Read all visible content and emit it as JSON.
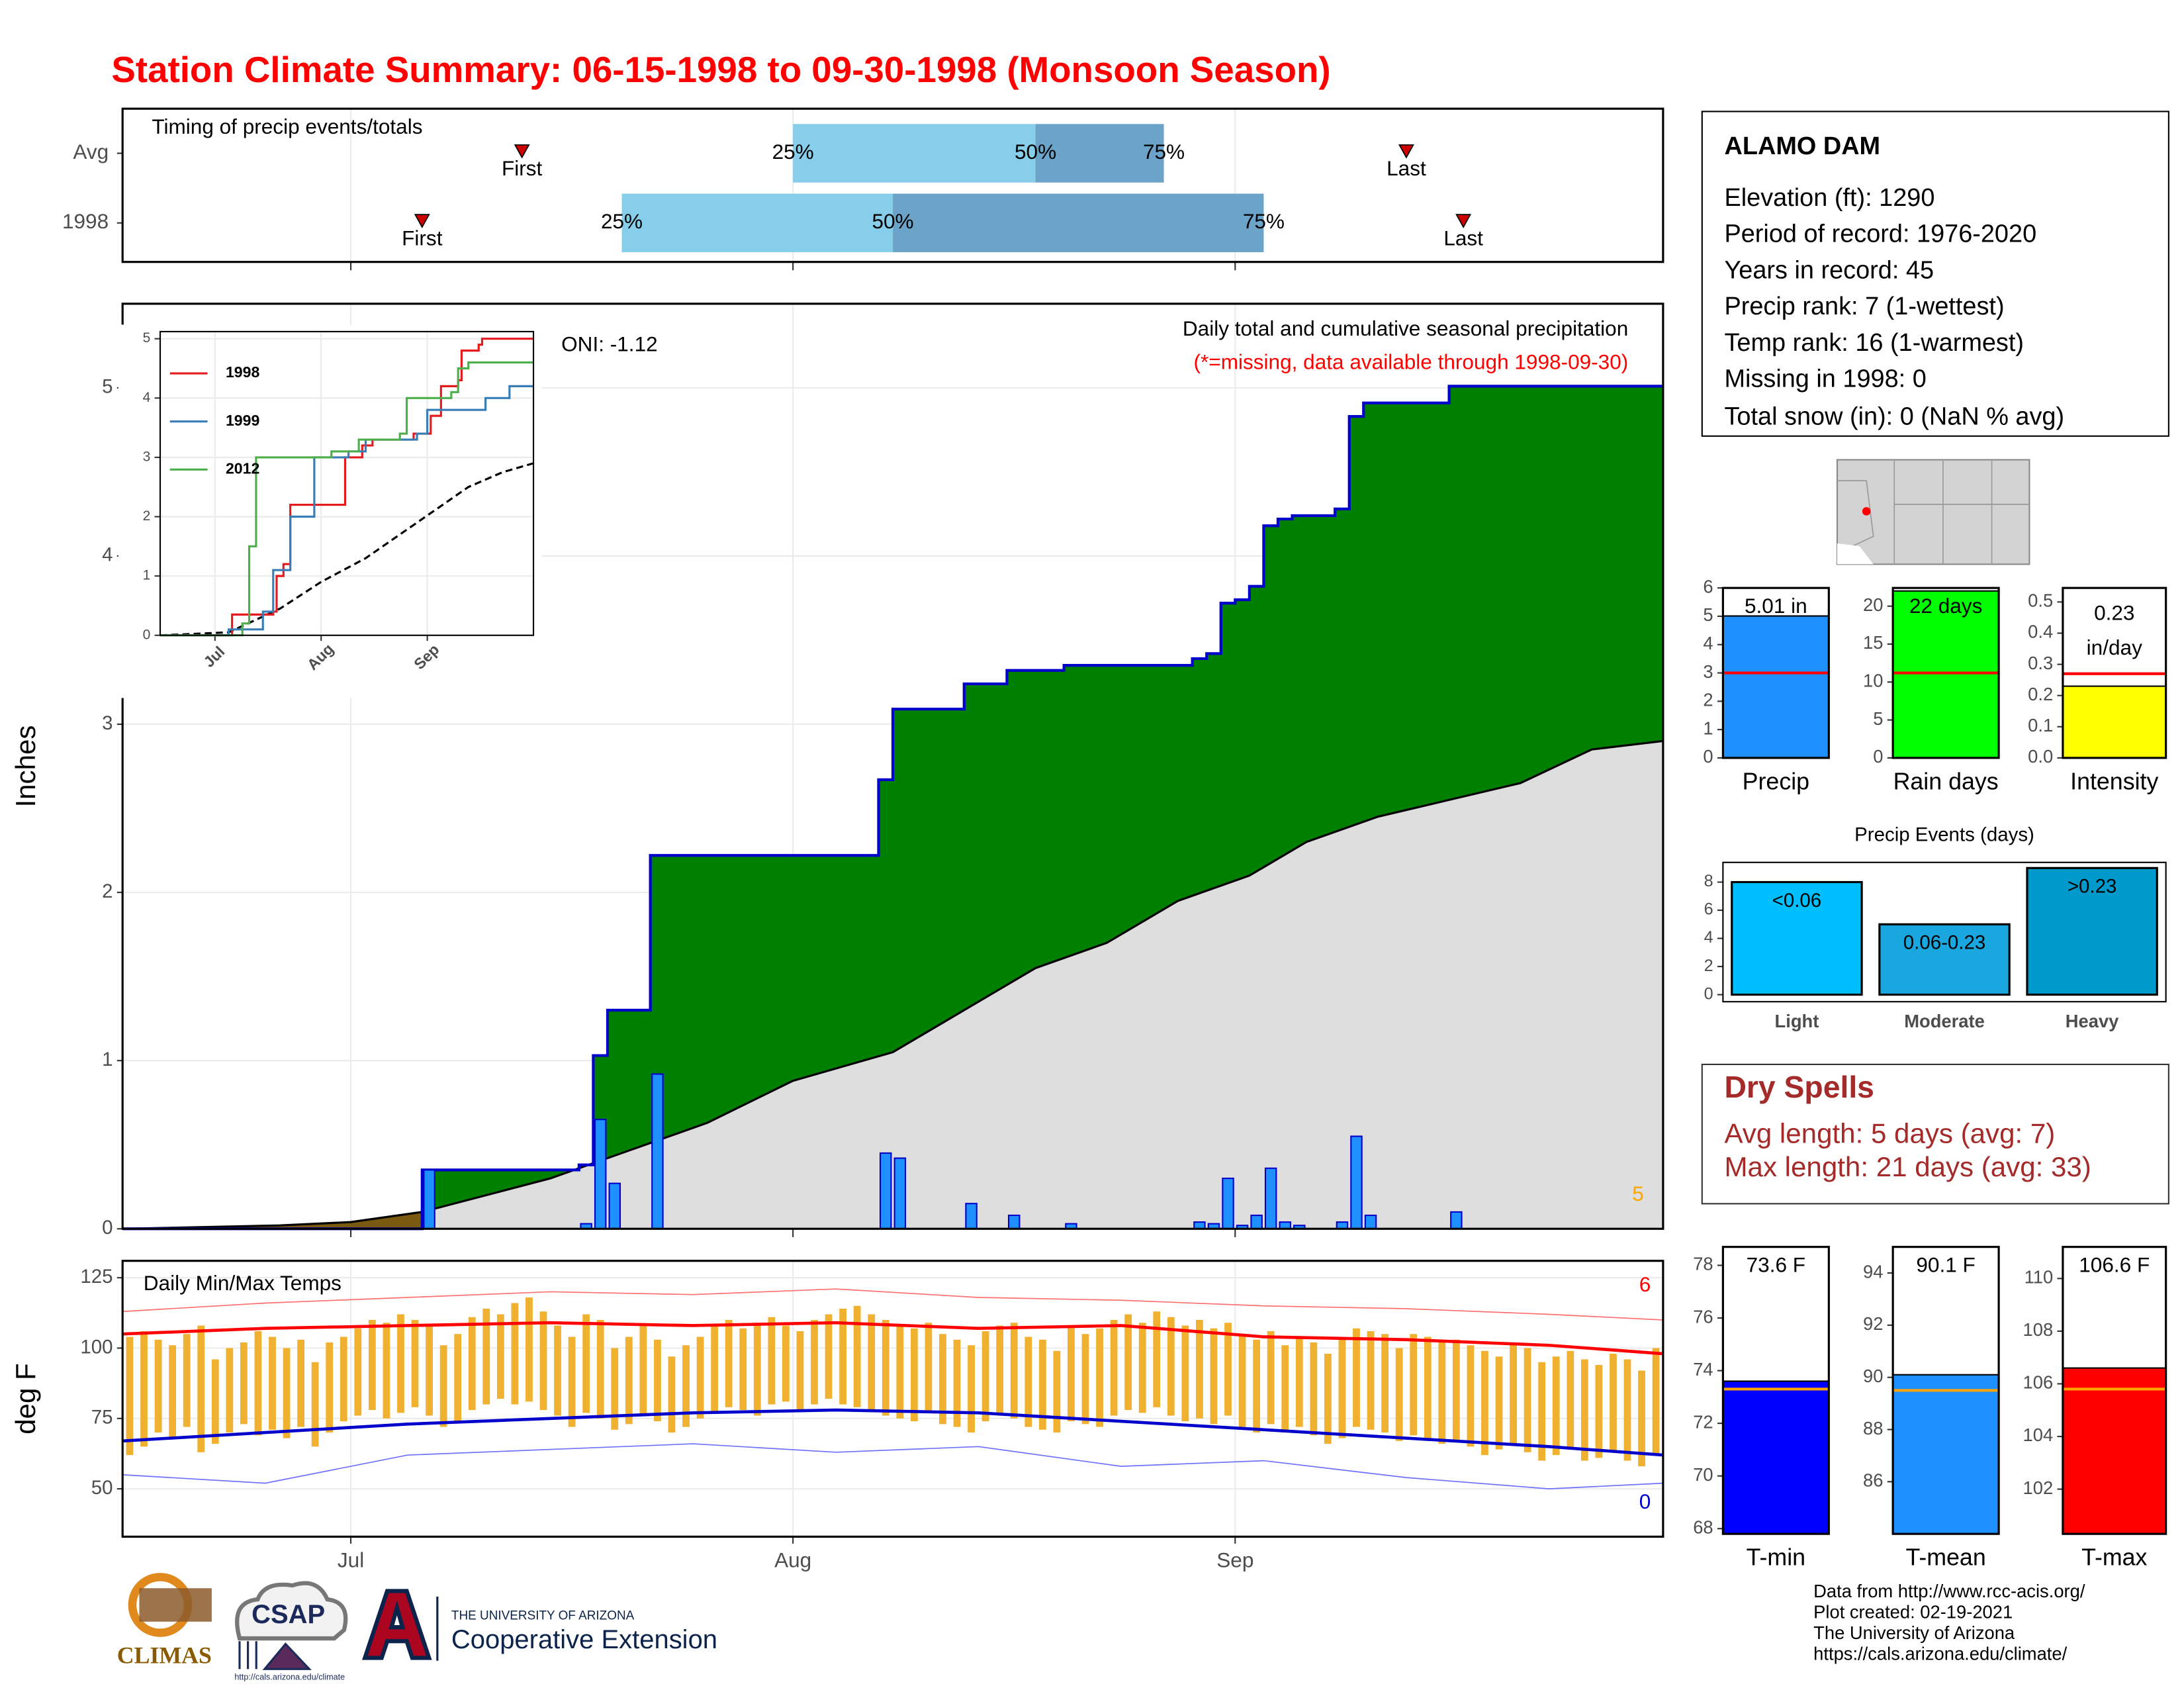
{
  "title": "Station Climate Summary: 06-15-1998 to 09-30-1998 (Monsoon Season)",
  "station": {
    "name": "ALAMO DAM",
    "lines": [
      "Elevation (ft): 1290",
      "Period of record: 1976-2020",
      "Years in record: 45",
      "Precip rank: 7 (1-wettest)",
      "Temp rank: 16 (1-warmest)",
      "Missing in 1998: 0",
      "Total snow (in): 0 (NaN % avg)"
    ]
  },
  "dry_spells": {
    "title": "Dry Spells",
    "lines": [
      "Avg length: 5 days (avg: 7)",
      "Max length: 21 days (avg: 33)"
    ]
  },
  "credits": [
    "Data from http://www.rcc-acis.org/",
    "Plot created: 02-19-2021",
    "The University of Arizona",
    "https://cals.arizona.edu/climate/"
  ],
  "logos": {
    "climas": "CLIMAS",
    "csap": "CSAP",
    "csap_url": "http://cals.arizona.edu/climate",
    "university": "THE UNIVERSITY OF ARIZONA",
    "extension": "Cooperative Extension"
  },
  "chart_data": [
    {
      "type": "timing",
      "title": "Timing of precip events/totals",
      "xlim": [
        0,
        108
      ],
      "xticks": [
        16,
        47,
        78
      ],
      "labels": {
        "first": "First",
        "last": "Last",
        "q25": "25%",
        "q50": "50%",
        "q75": "75%"
      },
      "colors": [
        "#87ceeb",
        "#6ba3c9"
      ],
      "marker_color": "#cc0000",
      "rows": [
        {
          "name": "Avg",
          "first": 28,
          "q25": 47,
          "q50": 64,
          "q75": 73,
          "last": 90
        },
        {
          "name": "1998",
          "first": 21,
          "q25": 35,
          "q50": 54,
          "q75": 80,
          "last": 94
        }
      ]
    },
    {
      "type": "cumulative_precip",
      "ylabel": "Inches",
      "oni": "ONI: -1.12",
      "subtitle": "Daily total and cumulative seasonal precipitation",
      "note": "(*=missing, data available through 1998-09-30)",
      "corner_count": 5,
      "xlim": [
        0,
        108
      ],
      "xticks": [
        16,
        47,
        78
      ],
      "ylim": [
        0,
        5.5
      ],
      "yticks": [
        0,
        1,
        2,
        3,
        4,
        5
      ],
      "grid": true,
      "bar_color": "#1e90ff",
      "cumulative_color": "#0000cc",
      "surplus_color": "#008000",
      "deficit_color": "#7a5a10",
      "average_fill": "#dedede",
      "daily": {
        "x": [
          21,
          32,
          33,
          34,
          37,
          53,
          54,
          59,
          62,
          66,
          75,
          76,
          77,
          78,
          79,
          80,
          81,
          82,
          85,
          86,
          87,
          93
        ],
        "values": [
          0.35,
          0.03,
          0.65,
          0.27,
          0.92,
          0.45,
          0.42,
          0.15,
          0.08,
          0.03,
          0.04,
          0.03,
          0.3,
          0.02,
          0.08,
          0.36,
          0.04,
          0.02,
          0.04,
          0.55,
          0.08,
          0.1
        ]
      },
      "average": {
        "x": [
          0,
          11,
          16,
          21,
          30,
          35,
          41,
          47,
          54,
          59,
          64,
          69,
          74,
          79,
          83,
          88,
          93,
          98,
          103,
          108
        ],
        "values": [
          0,
          0.02,
          0.04,
          0.1,
          0.3,
          0.45,
          0.63,
          0.88,
          1.05,
          1.3,
          1.55,
          1.7,
          1.95,
          2.1,
          2.3,
          2.45,
          2.55,
          2.65,
          2.85,
          2.9
        ]
      }
    },
    {
      "type": "inset_line",
      "xlim": [
        0,
        109
      ],
      "ylim": [
        0,
        5.12
      ],
      "yticks": [
        0,
        1,
        2,
        3,
        4,
        5
      ],
      "xticks": [
        {
          "value": 16,
          "label": "Jul"
        },
        {
          "value": 47,
          "label": "Aug"
        },
        {
          "value": 78,
          "label": "Sep"
        }
      ],
      "series": [
        {
          "name": "1998",
          "color": "#e41a1c",
          "x": [
            0,
            20,
            21,
            33,
            34,
            36,
            38,
            53,
            54,
            59,
            62,
            74,
            79,
            82,
            87,
            88,
            93,
            94,
            109
          ],
          "values": [
            0,
            0,
            0.35,
            0.4,
            1.0,
            1.2,
            2.2,
            2.2,
            3.0,
            3.2,
            3.3,
            3.4,
            3.7,
            4.2,
            4.3,
            4.8,
            4.9,
            5.0,
            5.0
          ]
        },
        {
          "name": "1999",
          "color": "#377eb8",
          "x": [
            0,
            20,
            30,
            33,
            38,
            45,
            55,
            60,
            75,
            78,
            95,
            102,
            109
          ],
          "values": [
            0,
            0.1,
            0.4,
            1.1,
            2.0,
            3.0,
            3.1,
            3.3,
            3.4,
            3.8,
            4.0,
            4.2,
            4.2
          ]
        },
        {
          "name": "2012",
          "color": "#4daf4a",
          "x": [
            0,
            24,
            26,
            28,
            45,
            50,
            58,
            70,
            72,
            85,
            87,
            90,
            109
          ],
          "values": [
            0,
            0.2,
            1.5,
            3.0,
            3.0,
            3.1,
            3.3,
            3.4,
            4.0,
            4.1,
            4.5,
            4.6,
            4.6
          ]
        }
      ],
      "average": {
        "x": [
          0,
          20,
          35,
          47,
          60,
          75,
          90,
          100,
          109
        ],
        "values": [
          0,
          0.05,
          0.45,
          0.9,
          1.3,
          1.9,
          2.5,
          2.75,
          2.9
        ]
      }
    },
    {
      "type": "temp_range",
      "title": "Daily Min/Max Temps",
      "ylabel": "deg F",
      "corner_max": 6,
      "corner_min": 0,
      "xlim": [
        0,
        108
      ],
      "xticks": [
        {
          "value": 16,
          "label": "Jul"
        },
        {
          "value": 47,
          "label": "Aug"
        },
        {
          "value": 78,
          "label": "Sep"
        }
      ],
      "ylim": [
        33,
        131
      ],
      "yticks": [
        50,
        75,
        100,
        125
      ],
      "grid": true,
      "bar_color": "#f0b030",
      "max": [
        104,
        106,
        103,
        101,
        105,
        108,
        96,
        100,
        102,
        106,
        104,
        100,
        103,
        95,
        102,
        104,
        107,
        110,
        109,
        112,
        110,
        108,
        101,
        105,
        111,
        114,
        112,
        116,
        118,
        113,
        108,
        104,
        112,
        110,
        100,
        104,
        108,
        103,
        97,
        101,
        104,
        108,
        110,
        107,
        109,
        111,
        108,
        106,
        110,
        112,
        114,
        115,
        112,
        110,
        108,
        107,
        109,
        105,
        103,
        101,
        106,
        108,
        109,
        104,
        103,
        99,
        108,
        105,
        107,
        110,
        112,
        109,
        113,
        111,
        108,
        110,
        107,
        109,
        105,
        103,
        106,
        101,
        104,
        102,
        98,
        103,
        107,
        106,
        105,
        100,
        105,
        104,
        102,
        103,
        101,
        99,
        97,
        102,
        100,
        95,
        97,
        99,
        96,
        94,
        98,
        96,
        92,
        100
      ],
      "min": [
        62,
        65,
        70,
        68,
        72,
        63,
        66,
        70,
        73,
        69,
        71,
        68,
        72,
        65,
        70,
        74,
        76,
        78,
        75,
        77,
        79,
        76,
        72,
        74,
        78,
        80,
        82,
        80,
        81,
        78,
        76,
        72,
        77,
        75,
        71,
        73,
        76,
        74,
        70,
        72,
        75,
        77,
        79,
        78,
        76,
        80,
        81,
        78,
        80,
        82,
        80,
        79,
        78,
        76,
        75,
        74,
        77,
        73,
        72,
        70,
        74,
        76,
        75,
        72,
        71,
        70,
        74,
        73,
        72,
        76,
        78,
        77,
        79,
        76,
        74,
        75,
        73,
        76,
        72,
        70,
        73,
        70,
        72,
        69,
        66,
        68,
        72,
        71,
        70,
        67,
        69,
        68,
        66,
        67,
        65,
        62,
        64,
        66,
        63,
        60,
        62,
        64,
        60,
        61,
        63,
        60,
        58,
        62
      ],
      "lines_x": [
        0,
        10,
        20,
        30,
        40,
        50,
        60,
        70,
        80,
        90,
        100,
        108
      ],
      "avg_max": {
        "color": "#ff0000",
        "values": [
          105,
          107,
          108,
          109,
          108,
          109,
          107,
          108,
          104,
          103,
          101,
          98
        ]
      },
      "avg_min": {
        "color": "#0000cc",
        "values": [
          67,
          70,
          73,
          75,
          77,
          78,
          77,
          74,
          71,
          68,
          65,
          62
        ]
      },
      "record_max": {
        "color": "#ff7070",
        "values": [
          113,
          116,
          118,
          120,
          119,
          121,
          118,
          117,
          115,
          114,
          112,
          110
        ]
      },
      "record_min": {
        "color": "#7070ff",
        "values": [
          55,
          52,
          62,
          64,
          66,
          63,
          65,
          58,
          60,
          54,
          50,
          52
        ]
      }
    },
    {
      "type": "mini_bar",
      "categories": [
        "Precip"
      ],
      "values": [
        5.01
      ],
      "value_labels": [
        "5.01 in"
      ],
      "avg": 3.0,
      "color": "#1e90ff",
      "avg_color": "#ff0000",
      "ylim": [
        0,
        6
      ],
      "yticks": [
        0,
        1,
        2,
        3,
        4,
        5,
        6
      ]
    },
    {
      "type": "mini_bar",
      "categories": [
        "Rain days"
      ],
      "values": [
        22
      ],
      "value_labels": [
        "22 days"
      ],
      "avg": 11.2,
      "color": "#00ff00",
      "avg_color": "#ff0000",
      "ylim": [
        0,
        22.4
      ],
      "yticks": [
        0,
        5,
        10,
        15,
        20
      ]
    },
    {
      "type": "mini_bar",
      "categories": [
        "Intensity"
      ],
      "values": [
        0.23
      ],
      "value_labels": [
        "0.23"
      ],
      "unit": "in/day",
      "avg": 0.27,
      "color": "#ffff00",
      "avg_color": "#ff0000",
      "ylim": [
        0,
        0.545
      ],
      "yticks": [
        {
          "value": 0,
          "label": "0.0"
        },
        0.1,
        0.2,
        0.3,
        0.4,
        0.5
      ]
    },
    {
      "type": "event_bar",
      "title": "Precip Events (days)",
      "categories": [
        "Light",
        "Moderate",
        "Heavy"
      ],
      "values": [
        8,
        5,
        9
      ],
      "bar_labels": [
        "<0.06",
        "0.06-0.23",
        ">0.23"
      ],
      "colors": [
        "#00bfff",
        "#1aa7e0",
        "#0099cc"
      ],
      "ylim": [
        -0.5,
        9.4
      ],
      "yticks": [
        0,
        2,
        4,
        6,
        8
      ]
    },
    {
      "type": "mini_bar",
      "categories": [
        "T-min"
      ],
      "values": [
        73.6
      ],
      "value_labels": [
        "73.6 F"
      ],
      "avg": 73.3,
      "color": "#0000ff",
      "avg_color": "#ffa500",
      "ylim": [
        67.8,
        78.7
      ],
      "yticks": [
        68,
        70,
        72,
        74,
        76,
        78
      ]
    },
    {
      "type": "mini_bar",
      "categories": [
        "T-mean"
      ],
      "values": [
        90.1
      ],
      "value_labels": [
        "90.1 F"
      ],
      "avg": 89.5,
      "color": "#1e90ff",
      "avg_color": "#ffa500",
      "ylim": [
        84,
        95
      ],
      "yticks": [
        86,
        88,
        90,
        92,
        94
      ]
    },
    {
      "type": "mini_bar",
      "categories": [
        "T-max"
      ],
      "values": [
        106.6
      ],
      "value_labels": [
        "106.6 F"
      ],
      "avg": 105.8,
      "color": "#ff0000",
      "avg_color": "#ffa500",
      "ylim": [
        100.3,
        111.2
      ],
      "yticks": [
        102,
        104,
        106,
        108,
        110
      ]
    }
  ]
}
